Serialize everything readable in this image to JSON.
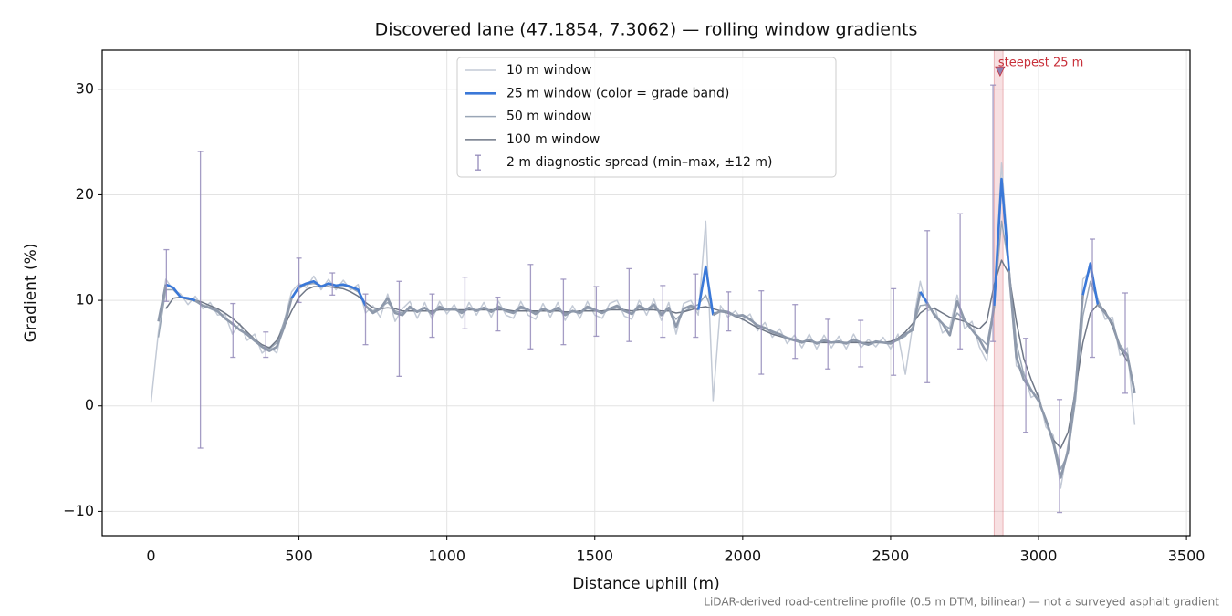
{
  "chart_data": {
    "type": "line",
    "title": "Discovered lane (47.1854, 7.3062) — rolling window gradients",
    "x_label": "Distance uphill (m)",
    "y_label": "Gradient (%)",
    "footnote": "LiDAR-derived road-centreline profile (0.5 m DTM, bilinear) — not a surveyed asphalt gradient",
    "xlim": [
      -165,
      3512
    ],
    "ylim": [
      -12.3,
      33.7
    ],
    "xticks": [
      0,
      500,
      1000,
      1500,
      2000,
      2500,
      3000,
      3500
    ],
    "yticks": [
      {
        "value": -10,
        "label": "−10"
      },
      0,
      10,
      20,
      30
    ],
    "grid": true,
    "legend": "upper center",
    "x": [
      0,
      25,
      50,
      75,
      100,
      125,
      150,
      175,
      200,
      225,
      250,
      275,
      300,
      325,
      350,
      375,
      400,
      425,
      450,
      475,
      500,
      525,
      550,
      575,
      600,
      625,
      650,
      675,
      700,
      725,
      750,
      775,
      800,
      825,
      850,
      875,
      900,
      925,
      950,
      975,
      1000,
      1025,
      1050,
      1075,
      1100,
      1125,
      1150,
      1175,
      1200,
      1225,
      1250,
      1275,
      1300,
      1325,
      1350,
      1375,
      1400,
      1425,
      1450,
      1475,
      1500,
      1525,
      1550,
      1575,
      1600,
      1625,
      1650,
      1675,
      1700,
      1725,
      1750,
      1775,
      1800,
      1825,
      1850,
      1875,
      1900,
      1925,
      1950,
      1975,
      2000,
      2025,
      2050,
      2075,
      2100,
      2125,
      2150,
      2175,
      2200,
      2225,
      2250,
      2275,
      2300,
      2325,
      2350,
      2375,
      2400,
      2425,
      2450,
      2475,
      2500,
      2525,
      2550,
      2575,
      2600,
      2625,
      2650,
      2675,
      2700,
      2725,
      2750,
      2775,
      2800,
      2825,
      2850,
      2875,
      2900,
      2925,
      2950,
      2975,
      3000,
      3025,
      3050,
      3075,
      3100,
      3125,
      3150,
      3175,
      3200,
      3225,
      3250,
      3275,
      3300,
      3325
    ],
    "series": [
      {
        "name": "10 m window",
        "color": "#c3cad6",
        "width": 1.5,
        "values": [
          0.3,
          7,
          12,
          11,
          10.6,
          9.6,
          10.4,
          9.2,
          9.8,
          8.6,
          8.7,
          6.8,
          7.8,
          6.2,
          6.8,
          5,
          5.6,
          5,
          8,
          10.8,
          11.6,
          11.2,
          12.3,
          11,
          12,
          11,
          11.9,
          11,
          11.5,
          8.8,
          9.5,
          8.4,
          10.6,
          8,
          9.2,
          9.9,
          8.3,
          9.8,
          8.2,
          9.9,
          8.7,
          9.6,
          8.3,
          9.8,
          8.6,
          9.8,
          8.4,
          9.9,
          8.6,
          8.3,
          9.9,
          8.6,
          8.2,
          9.7,
          8.4,
          9.8,
          8.1,
          9.5,
          8.3,
          9.9,
          8.6,
          8.3,
          9.7,
          10,
          8.5,
          8.2,
          10,
          8.6,
          10.1,
          8.1,
          9.8,
          6.8,
          9.7,
          10,
          8.6,
          17.5,
          0.5,
          9.5,
          8.4,
          9,
          8.1,
          8.7,
          7.1,
          7.9,
          6.5,
          7.3,
          5.9,
          6.7,
          5.5,
          6.8,
          5.4,
          6.7,
          5.5,
          6.6,
          5.4,
          6.8,
          5.5,
          6.3,
          5.6,
          6.5,
          5.4,
          6.8,
          3,
          7.7,
          11.8,
          9,
          9.3,
          6.9,
          7.5,
          10.5,
          7.3,
          8,
          5.6,
          4.2,
          10.5,
          23,
          13.5,
          3.8,
          3.2,
          0.8,
          1.2,
          -2,
          -2.8,
          -7.8,
          -3.6,
          0.8,
          12,
          12.8,
          10.2,
          8.2,
          8.4,
          4.8,
          5.5,
          -1.8
        ]
      },
      {
        "name": "50 m window",
        "color": "#9aa6b6",
        "width": 1.5,
        "values": [
          null,
          6.5,
          11,
          11,
          10.3,
          10.1,
          9.9,
          9.5,
          9.2,
          8.9,
          8.3,
          7.7,
          7.2,
          6.7,
          6.1,
          5.6,
          5.4,
          6,
          8,
          10.3,
          11.1,
          11.5,
          11.6,
          11.4,
          11.5,
          11.4,
          11.4,
          11.2,
          10.8,
          9.5,
          9,
          9.3,
          9.8,
          9,
          8.8,
          9.2,
          9,
          9.2,
          8.9,
          9.2,
          9.1,
          9.1,
          9,
          9.2,
          9,
          9.2,
          9,
          9.2,
          9.1,
          8.9,
          9.2,
          9.1,
          8.9,
          9.1,
          9,
          9.1,
          8.8,
          9,
          8.9,
          9.2,
          9.1,
          8.9,
          9.1,
          9.3,
          9,
          8.8,
          9.3,
          9.1,
          9.3,
          8.8,
          9.1,
          8.2,
          8.9,
          9.3,
          9.6,
          10.5,
          8.8,
          8.9,
          8.8,
          8.6,
          8.5,
          8.1,
          7.7,
          7.4,
          7.1,
          6.8,
          6.5,
          6.3,
          6.1,
          6.2,
          6,
          6.1,
          6,
          6.1,
          6,
          6.1,
          6,
          5.9,
          6,
          6,
          6,
          6.2,
          6.6,
          7.5,
          9.5,
          9.6,
          8.7,
          7.8,
          7.3,
          8.8,
          8.1,
          7.2,
          6.5,
          5.8,
          9.5,
          17.5,
          13.2,
          6,
          3,
          1.6,
          0.4,
          -1.2,
          -3.2,
          -6,
          -4.5,
          0.5,
          8.5,
          11.8,
          10,
          8.8,
          7.6,
          5.8,
          4.9,
          1.5
        ]
      },
      {
        "name": "100 m window",
        "color": "#6f7786",
        "width": 1.5,
        "values": [
          null,
          null,
          9.2,
          10.2,
          10.3,
          10.1,
          10,
          9.8,
          9.5,
          9.2,
          8.8,
          8.3,
          7.7,
          7,
          6.3,
          5.8,
          5.5,
          6.2,
          7.5,
          9,
          10.3,
          11,
          11.3,
          11.3,
          11.3,
          11.2,
          11.1,
          10.8,
          10.4,
          9.8,
          9.3,
          9.2,
          9.3,
          9.2,
          9,
          9,
          9,
          9,
          9,
          9.1,
          9.1,
          9.1,
          9.1,
          9.1,
          9.1,
          9.1,
          9.1,
          9.1,
          9.1,
          9,
          9,
          9,
          9,
          9,
          9,
          9,
          8.9,
          8.9,
          9,
          9,
          9,
          9,
          9.1,
          9.1,
          9.1,
          9,
          9.1,
          9.1,
          9.1,
          9,
          9,
          8.8,
          8.9,
          9.1,
          9.3,
          9.4,
          9.2,
          9,
          8.8,
          8.5,
          8.2,
          7.8,
          7.4,
          7.1,
          6.8,
          6.6,
          6.4,
          6.2,
          6.1,
          6.1,
          6,
          6,
          6,
          6,
          6,
          6,
          6,
          6,
          6,
          6,
          6.1,
          6.4,
          7,
          7.8,
          8.8,
          9.3,
          9.2,
          8.8,
          8.4,
          8.2,
          8,
          7.6,
          7.3,
          8,
          11.5,
          13.8,
          12.5,
          8,
          4.5,
          2.5,
          0.8,
          -1.5,
          -3.2,
          -4,
          -2.5,
          1.5,
          6,
          8.8,
          9.6,
          9,
          7.5,
          5.5,
          4.2,
          null
        ]
      },
      {
        "name": "25 m window (color = grade band)",
        "color": "#3a78d8",
        "width": 2.6,
        "bands": {
          "edges": [
            10,
            20
          ],
          "colors": [
            "#8e99ab",
            "#3a78d8",
            "#e0861a"
          ]
        },
        "values": [
          null,
          8,
          11.5,
          11.2,
          10.3,
          10.2,
          10,
          9.5,
          9.3,
          9,
          8.3,
          7.8,
          7.2,
          6.8,
          6.2,
          5.6,
          5.2,
          5.6,
          7.5,
          10.2,
          11.3,
          11.6,
          11.8,
          11.3,
          11.6,
          11.4,
          11.5,
          11.3,
          11,
          9.5,
          8.8,
          9.2,
          10.2,
          8.8,
          8.6,
          9.4,
          8.9,
          9.3,
          8.7,
          9.4,
          9.1,
          9.2,
          8.8,
          9.3,
          9,
          9.3,
          8.9,
          9.4,
          9,
          8.8,
          9.4,
          9.1,
          8.7,
          9.2,
          8.9,
          9.3,
          8.6,
          9,
          8.8,
          9.4,
          9.1,
          8.8,
          9.2,
          9.5,
          9,
          8.7,
          9.5,
          9.1,
          9.6,
          8.6,
          9.3,
          7.5,
          9.2,
          9.5,
          9.1,
          13.2,
          8.6,
          9,
          8.9,
          8.5,
          8.6,
          8.2,
          7.6,
          7.4,
          7,
          6.8,
          6.4,
          6.2,
          6,
          6.3,
          5.9,
          6.2,
          6,
          6.1,
          5.9,
          6.3,
          6,
          5.8,
          6.1,
          6,
          5.9,
          6.3,
          6.8,
          7.2,
          10.8,
          9.7,
          8.5,
          7.8,
          6.7,
          9.9,
          8.1,
          7.2,
          6.3,
          5,
          9.5,
          21.5,
          12.8,
          4.6,
          2.5,
          1.5,
          0.5,
          -1.3,
          -3.5,
          -6.8,
          -4.2,
          1.5,
          10.5,
          13.5,
          9.6,
          8.8,
          7.8,
          5.5,
          4.8,
          1.2
        ]
      }
    ],
    "errorbars": {
      "name": "2 m diagnostic spread (min–max, ±12 m)",
      "color": "#958cbb",
      "x": [
        52,
        167,
        277,
        388,
        500,
        613,
        725,
        839,
        950,
        1061,
        1172,
        1283,
        1394,
        1505,
        1616,
        1730,
        1841,
        1952,
        2063,
        2177,
        2288,
        2399,
        2510,
        2624,
        2735,
        2846,
        2957,
        3071,
        3182,
        3293
      ],
      "low": [
        9.9,
        -4,
        4.6,
        4.6,
        9.8,
        10.5,
        5.8,
        2.8,
        6.5,
        7.3,
        7.1,
        5.4,
        5.8,
        6.6,
        6.1,
        6.5,
        6.5,
        7.1,
        3,
        4.5,
        3.5,
        3.7,
        2.9,
        2.2,
        5.4,
        6.1,
        -2.5,
        -10.1,
        4.6,
        1.2
      ],
      "high": [
        14.8,
        24.1,
        9.7,
        7,
        14,
        12.6,
        10.6,
        11.8,
        10.6,
        12.2,
        10.3,
        13.4,
        12,
        11.3,
        13,
        11.4,
        12.5,
        10.8,
        10.9,
        9.6,
        8.2,
        8.1,
        11.1,
        16.6,
        18.2,
        30.4,
        6.4,
        0.6,
        15.8,
        10.7
      ]
    },
    "annotation": {
      "text": "steepest 25 m",
      "x": 2870,
      "y": 31.7,
      "span": [
        2850,
        2880
      ],
      "color": "#c8303a"
    }
  }
}
